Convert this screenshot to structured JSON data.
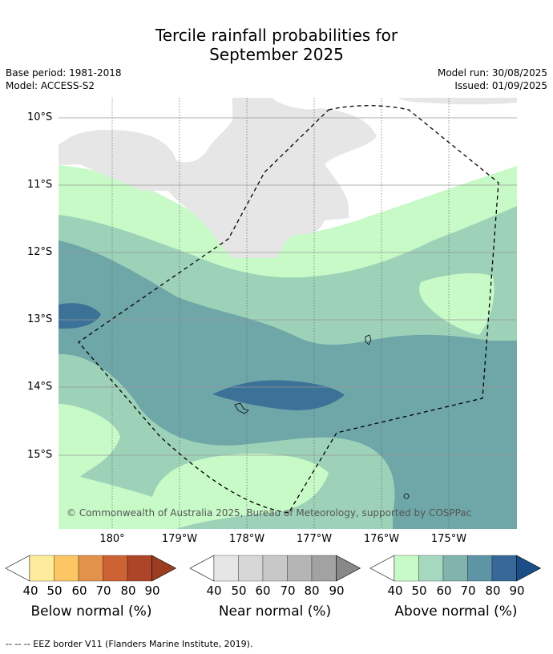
{
  "header": {
    "title_line1": "Tercile rainfall probabilities for",
    "title_line2": "September 2025",
    "base_period": "Base period: 1981-2018",
    "model": "Model: ACCESS-S2",
    "model_run": "Model run: 30/08/2025",
    "issued": "Issued: 01/09/2025"
  },
  "map": {
    "lat_labels": [
      "10°S",
      "11°S",
      "12°S",
      "13°S",
      "14°S",
      "15°S"
    ],
    "lon_labels": [
      "180°",
      "179°W",
      "178°W",
      "177°W",
      "176°W",
      "175°W"
    ],
    "copyright": "© Commonwealth of Australia 2025, Bureau of Meteorology, supported by COSPPac",
    "colors": {
      "near_light": "#e6e6e6",
      "above_40": "#c8fac8",
      "above_50": "#9dd2b9",
      "above_60": "#6fa6a8",
      "above_70": "#5b96a6",
      "above_80": "#3c7298"
    }
  },
  "colorbars": [
    {
      "title": "Below normal (%)",
      "ticks": [
        "40",
        "50",
        "60",
        "70",
        "80",
        "90"
      ],
      "colors": [
        "#ffffff",
        "#feeb9c",
        "#fdc664",
        "#e2924a",
        "#cd6234",
        "#ad4528",
        "#9c3d22"
      ]
    },
    {
      "title": "Near normal (%)",
      "ticks": [
        "40",
        "50",
        "60",
        "70",
        "80",
        "90"
      ],
      "colors": [
        "#ffffff",
        "#e6e6e6",
        "#d7d7d7",
        "#c8c8c8",
        "#b5b5b5",
        "#a2a2a2",
        "#888888"
      ]
    },
    {
      "title": "Above normal (%)",
      "ticks": [
        "40",
        "50",
        "60",
        "70",
        "80",
        "90"
      ],
      "colors": [
        "#ffffff",
        "#c8fac8",
        "#a6d8c0",
        "#82b4ae",
        "#5d94a6",
        "#376898",
        "#1b4e86"
      ]
    }
  ],
  "footer": {
    "legend": "--  --  -- EEZ border V11 (Flanders Marine Institute, 2019)."
  }
}
